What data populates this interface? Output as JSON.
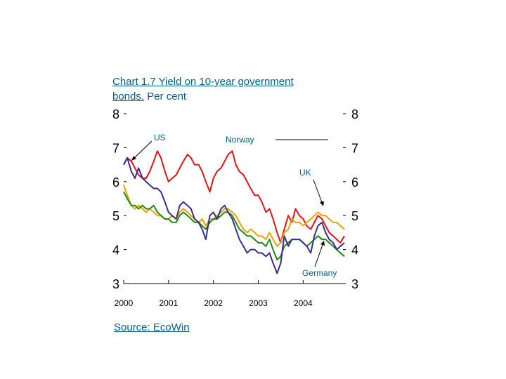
{
  "title": {
    "line1_prefix": "Chart 1.7",
    "line1_rest": " Yield on 10-year government",
    "line2_prefix": "bonds.",
    "line2_rest": " Per cent"
  },
  "source": "Source: EcoWin",
  "chart_data": {
    "type": "line",
    "title": "Chart 1.7 Yield on 10-year government bonds. Per cent",
    "xlabel": "",
    "ylabel": "Per cent",
    "xlim": [
      2000.0,
      2004.95
    ],
    "ylim": [
      3,
      8
    ],
    "y_ticks": [
      "8",
      "7",
      "6",
      "5",
      "4",
      "3"
    ],
    "x_ticks": [
      "2000",
      "2001",
      "2002",
      "2003",
      "2004"
    ],
    "annotations": [
      "US",
      "Norway",
      "UK",
      "Germany"
    ],
    "series": [
      {
        "name": "Norway",
        "color": "#e01414",
        "x": [
          2000.0,
          2000.08,
          2000.17,
          2000.25,
          2000.33,
          2000.42,
          2000.5,
          2000.58,
          2000.67,
          2000.75,
          2000.83,
          2000.92,
          2001.0,
          2001.08,
          2001.17,
          2001.25,
          2001.33,
          2001.42,
          2001.5,
          2001.58,
          2001.67,
          2001.75,
          2001.83,
          2001.92,
          2002.0,
          2002.08,
          2002.17,
          2002.25,
          2002.33,
          2002.42,
          2002.5,
          2002.58,
          2002.67,
          2002.75,
          2002.83,
          2002.92,
          2003.0,
          2003.08,
          2003.17,
          2003.25,
          2003.33,
          2003.42,
          2003.5,
          2003.58,
          2003.67,
          2003.75,
          2003.83,
          2003.92,
          2004.0,
          2004.08,
          2004.17,
          2004.25,
          2004.33,
          2004.42,
          2004.5,
          2004.58,
          2004.67,
          2004.75,
          2004.83,
          2004.92
        ],
        "values": [
          6.5,
          6.7,
          6.6,
          6.4,
          6.2,
          6.1,
          6.1,
          6.3,
          6.6,
          6.9,
          6.7,
          6.3,
          6.0,
          6.1,
          6.2,
          6.4,
          6.6,
          6.8,
          6.7,
          6.5,
          6.5,
          6.3,
          6.0,
          5.7,
          6.1,
          6.3,
          6.4,
          6.6,
          6.8,
          6.9,
          6.5,
          6.3,
          6.2,
          6.0,
          5.8,
          5.6,
          5.6,
          5.4,
          5.1,
          5.2,
          4.9,
          4.5,
          4.2,
          4.6,
          5.0,
          4.8,
          5.2,
          5.0,
          4.9,
          4.7,
          4.6,
          4.8,
          5.0,
          4.9,
          4.7,
          4.5,
          4.4,
          4.3,
          4.2,
          4.4
        ]
      },
      {
        "name": "UK",
        "color": "#f0a000",
        "x": [
          2000.0,
          2000.08,
          2000.17,
          2000.25,
          2000.33,
          2000.42,
          2000.5,
          2000.58,
          2000.67,
          2000.75,
          2000.83,
          2000.92,
          2001.0,
          2001.08,
          2001.17,
          2001.25,
          2001.33,
          2001.42,
          2001.5,
          2001.58,
          2001.67,
          2001.75,
          2001.83,
          2001.92,
          2002.0,
          2002.08,
          2002.17,
          2002.25,
          2002.33,
          2002.42,
          2002.5,
          2002.58,
          2002.67,
          2002.75,
          2002.83,
          2002.92,
          2003.0,
          2003.08,
          2003.17,
          2003.25,
          2003.33,
          2003.42,
          2003.5,
          2003.58,
          2003.67,
          2003.75,
          2003.83,
          2003.92,
          2004.0,
          2004.08,
          2004.17,
          2004.25,
          2004.33,
          2004.42,
          2004.5,
          2004.58,
          2004.67,
          2004.75,
          2004.83,
          2004.92
        ],
        "values": [
          5.9,
          5.6,
          5.3,
          5.2,
          5.3,
          5.2,
          5.1,
          5.2,
          5.1,
          5.0,
          5.0,
          4.9,
          4.9,
          5.0,
          4.9,
          5.1,
          5.2,
          5.1,
          5.0,
          4.9,
          4.8,
          4.9,
          4.7,
          4.9,
          4.9,
          5.0,
          5.1,
          5.2,
          5.2,
          5.1,
          5.0,
          4.8,
          4.6,
          4.5,
          4.6,
          4.5,
          4.4,
          4.4,
          4.3,
          4.5,
          4.3,
          4.1,
          4.2,
          4.5,
          4.6,
          4.9,
          4.8,
          4.8,
          4.7,
          4.8,
          4.9,
          5.0,
          5.1,
          5.0,
          5.0,
          4.9,
          4.8,
          4.8,
          4.7,
          4.6
        ]
      },
      {
        "name": "Germany",
        "color": "#1e8a14",
        "x": [
          2000.0,
          2000.08,
          2000.17,
          2000.25,
          2000.33,
          2000.42,
          2000.5,
          2000.58,
          2000.67,
          2000.75,
          2000.83,
          2000.92,
          2001.0,
          2001.08,
          2001.17,
          2001.25,
          2001.33,
          2001.42,
          2001.5,
          2001.58,
          2001.67,
          2001.75,
          2001.83,
          2001.92,
          2002.0,
          2002.08,
          2002.17,
          2002.25,
          2002.33,
          2002.42,
          2002.5,
          2002.58,
          2002.67,
          2002.75,
          2002.83,
          2002.92,
          2003.0,
          2003.08,
          2003.17,
          2003.25,
          2003.33,
          2003.42,
          2003.5,
          2003.58,
          2003.67,
          2003.75,
          2003.83,
          2003.92,
          2004.0,
          2004.08,
          2004.17,
          2004.25,
          2004.33,
          2004.42,
          2004.5,
          2004.58,
          2004.67,
          2004.75,
          2004.83,
          2004.92
        ],
        "values": [
          5.7,
          5.5,
          5.3,
          5.3,
          5.2,
          5.3,
          5.2,
          5.2,
          5.3,
          5.1,
          5.0,
          4.9,
          4.9,
          4.8,
          4.8,
          5.0,
          5.1,
          5.0,
          4.9,
          4.8,
          4.8,
          4.7,
          4.6,
          4.8,
          4.9,
          4.9,
          5.0,
          5.1,
          5.1,
          5.0,
          4.8,
          4.6,
          4.5,
          4.4,
          4.4,
          4.3,
          4.2,
          4.2,
          4.1,
          4.3,
          4.0,
          3.7,
          3.8,
          4.1,
          4.2,
          4.3,
          4.3,
          4.3,
          4.2,
          4.1,
          4.2,
          4.3,
          4.4,
          4.3,
          4.3,
          4.2,
          4.1,
          4.0,
          3.9,
          3.8
        ]
      },
      {
        "name": "US",
        "color": "#3a2e8c",
        "x": [
          2000.0,
          2000.08,
          2000.17,
          2000.25,
          2000.33,
          2000.42,
          2000.5,
          2000.58,
          2000.67,
          2000.75,
          2000.83,
          2000.92,
          2001.0,
          2001.08,
          2001.17,
          2001.25,
          2001.33,
          2001.42,
          2001.5,
          2001.58,
          2001.67,
          2001.75,
          2001.83,
          2001.92,
          2002.0,
          2002.08,
          2002.17,
          2002.25,
          2002.33,
          2002.42,
          2002.5,
          2002.58,
          2002.67,
          2002.75,
          2002.83,
          2002.92,
          2003.0,
          2003.08,
          2003.17,
          2003.25,
          2003.33,
          2003.42,
          2003.5,
          2003.58,
          2003.67,
          2003.75,
          2003.83,
          2003.92,
          2004.0,
          2004.08,
          2004.17,
          2004.25,
          2004.33,
          2004.42,
          2004.5,
          2004.58,
          2004.67,
          2004.75,
          2004.83,
          2004.92
        ],
        "values": [
          6.5,
          6.7,
          6.3,
          6.1,
          6.4,
          6.1,
          6.0,
          5.9,
          5.8,
          5.8,
          5.7,
          5.4,
          5.1,
          5.0,
          4.9,
          5.3,
          5.4,
          5.3,
          5.2,
          4.9,
          4.8,
          4.6,
          4.3,
          5.0,
          5.1,
          4.9,
          5.2,
          5.3,
          5.1,
          4.9,
          4.6,
          4.3,
          4.1,
          3.9,
          4.0,
          4.0,
          3.9,
          3.9,
          3.8,
          3.9,
          3.6,
          3.3,
          3.6,
          4.4,
          4.1,
          4.3,
          4.3,
          4.3,
          4.2,
          4.1,
          3.9,
          4.4,
          4.7,
          4.8,
          4.5,
          4.3,
          4.2,
          4.0,
          4.1,
          4.2
        ]
      }
    ]
  }
}
